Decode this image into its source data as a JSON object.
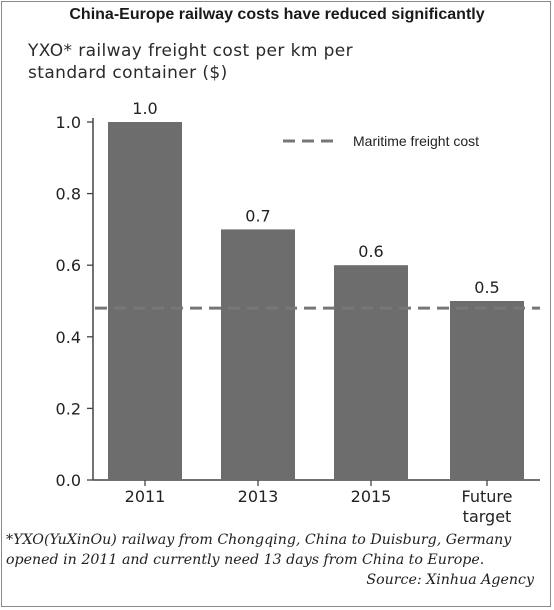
{
  "title": "China-Europe railway costs have reduced significantly",
  "colors": {
    "bar": "#6d6d6d",
    "axis": "#444444",
    "reference_line": "#777777",
    "text": "#222222"
  },
  "chart_data": {
    "type": "bar",
    "title": "China-Europe railway costs have reduced significantly",
    "ylabel": "YXO* railway freight cost per km per\nstandard container ($)",
    "xlabel": "",
    "categories": [
      "2011",
      "2013",
      "2015",
      "Future target"
    ],
    "values": [
      1.0,
      0.7,
      0.6,
      0.5
    ],
    "data_labels": [
      "1.0",
      "0.7",
      "0.6",
      "0.5"
    ],
    "ylim": [
      0,
      1.0
    ],
    "yticks": [
      "0.0",
      "0.2",
      "0.4",
      "0.6",
      "0.8",
      "1.0"
    ],
    "grid": false,
    "reference_line": {
      "label": "Maritime freight cost",
      "value": 0.48,
      "style": "dashed"
    },
    "legend": {
      "placement": "top-right",
      "entries": [
        "Maritime freight cost"
      ]
    }
  },
  "footnote": {
    "text": "*YXO(YuXinOu) railway from Chongqing, China to Duisburg, Germany opened in 2011 and currently need 13 days from China to Europe.",
    "source": "Source: Xinhua Agency"
  }
}
